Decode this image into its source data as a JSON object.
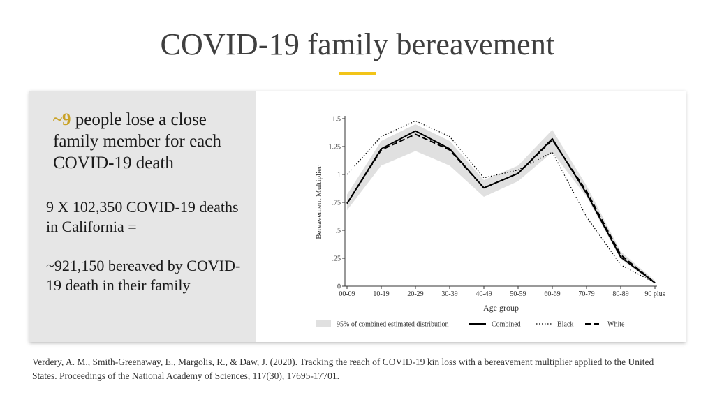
{
  "slide": {
    "title": "COVID-19 family bereavement",
    "headline_number": "~9",
    "headline_text": " people lose a close family member for each COVID-19 death",
    "paragraph_1": "9 X 102,350 COVID-19 deaths in California =",
    "paragraph_2": "~921,150 bereaved by COVID-19 death in their family",
    "citation": "Verdery, A. M., Smith-Greenaway, E., Margolis, R., & Daw, J. (2020). Tracking the reach of COVID-19 kin loss with a bereavement multiplier applied to the United States. Proceedings of the National Academy of Sciences, 117(30), 17695-17701.",
    "accent_color": "#f2c418"
  },
  "chart_data": {
    "type": "line",
    "xlabel": "Age group",
    "ylabel": "Bereavement Multiplier",
    "categories": [
      "00-09",
      "10-19",
      "20-29",
      "30-39",
      "40-49",
      "50-59",
      "60-69",
      "70-79",
      "80-89",
      "90 plus"
    ],
    "ylim": [
      0,
      1.5
    ],
    "yticks": [
      0,
      0.25,
      0.5,
      0.75,
      1,
      1.25,
      1.5
    ],
    "ytick_labels": [
      "0",
      ".25",
      ".5",
      ".75",
      "1",
      "1.25",
      "1.5"
    ],
    "grid": false,
    "legend_position": "bottom",
    "band": {
      "name": "95% of combined estimated distribution",
      "lower": [
        0.68,
        1.08,
        1.21,
        1.08,
        0.8,
        0.94,
        1.2,
        0.8,
        0.24,
        0.02
      ],
      "upper": [
        0.82,
        1.3,
        1.45,
        1.3,
        0.95,
        1.08,
        1.4,
        0.9,
        0.31,
        0.05
      ],
      "color": "#e0e0e0"
    },
    "series": [
      {
        "name": "Combined",
        "style": "solid",
        "color": "#000000",
        "values": [
          0.74,
          1.23,
          1.39,
          1.23,
          0.88,
          1.01,
          1.32,
          0.83,
          0.26,
          0.03
        ]
      },
      {
        "name": "Black",
        "style": "dotted",
        "color": "#000000",
        "values": [
          1.0,
          1.34,
          1.48,
          1.34,
          0.97,
          1.04,
          1.2,
          0.62,
          0.19,
          0.03
        ]
      },
      {
        "name": "White",
        "style": "dashed",
        "color": "#000000",
        "values": [
          0.74,
          1.22,
          1.36,
          1.22,
          0.88,
          1.01,
          1.31,
          0.85,
          0.28,
          0.03
        ]
      }
    ]
  }
}
